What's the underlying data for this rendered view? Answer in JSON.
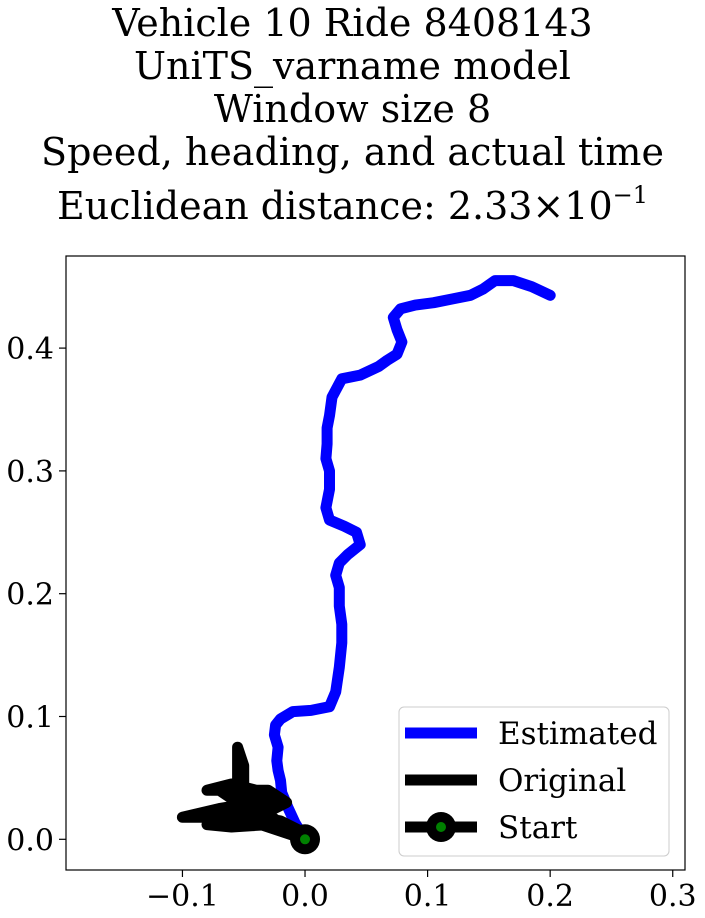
{
  "title": {
    "line1": "Vehicle 10 Ride 8408143",
    "line2": "UniTS_varname model",
    "line3": "Window size 8",
    "line4": "Speed, heading, and actual time",
    "line5_prefix": "Euclidean distance: 2.33×10",
    "line5_exp": "−1"
  },
  "chart_data": {
    "type": "line",
    "xlim": [
      -0.195,
      0.31
    ],
    "ylim": [
      -0.025,
      0.475
    ],
    "xticks": [
      {
        "value": -0.1,
        "label": "−0.1"
      },
      {
        "value": 0.0,
        "label": "0.0"
      },
      {
        "value": 0.1,
        "label": "0.1"
      },
      {
        "value": 0.2,
        "label": "0.2"
      },
      {
        "value": 0.3,
        "label": "0.3"
      }
    ],
    "yticks": [
      {
        "value": 0.0,
        "label": "0.0"
      },
      {
        "value": 0.1,
        "label": "0.1"
      },
      {
        "value": 0.2,
        "label": "0.2"
      },
      {
        "value": 0.3,
        "label": "0.3"
      },
      {
        "value": 0.4,
        "label": "0.4"
      }
    ],
    "grid": false,
    "legend_position": "lower-right",
    "series": [
      {
        "name": "Estimated",
        "color": "#0000ff",
        "points": [
          [
            0.0,
            0.0
          ],
          [
            -0.008,
            0.013
          ],
          [
            -0.014,
            0.026
          ],
          [
            -0.019,
            0.038
          ],
          [
            -0.02,
            0.048
          ],
          [
            -0.022,
            0.056
          ],
          [
            -0.023,
            0.064
          ],
          [
            -0.022,
            0.075
          ],
          [
            -0.025,
            0.085
          ],
          [
            -0.024,
            0.093
          ],
          [
            -0.02,
            0.098
          ],
          [
            -0.01,
            0.104
          ],
          [
            0.005,
            0.105
          ],
          [
            0.02,
            0.108
          ],
          [
            0.025,
            0.12
          ],
          [
            0.028,
            0.14
          ],
          [
            0.03,
            0.16
          ],
          [
            0.03,
            0.175
          ],
          [
            0.028,
            0.19
          ],
          [
            0.028,
            0.205
          ],
          [
            0.025,
            0.215
          ],
          [
            0.028,
            0.225
          ],
          [
            0.035,
            0.232
          ],
          [
            0.045,
            0.24
          ],
          [
            0.042,
            0.25
          ],
          [
            0.032,
            0.255
          ],
          [
            0.02,
            0.26
          ],
          [
            0.017,
            0.27
          ],
          [
            0.02,
            0.285
          ],
          [
            0.02,
            0.3
          ],
          [
            0.017,
            0.31
          ],
          [
            0.018,
            0.322
          ],
          [
            0.018,
            0.335
          ],
          [
            0.02,
            0.345
          ],
          [
            0.022,
            0.36
          ],
          [
            0.03,
            0.375
          ],
          [
            0.045,
            0.378
          ],
          [
            0.06,
            0.385
          ],
          [
            0.067,
            0.39
          ],
          [
            0.075,
            0.395
          ],
          [
            0.079,
            0.405
          ],
          [
            0.075,
            0.415
          ],
          [
            0.072,
            0.425
          ],
          [
            0.078,
            0.432
          ],
          [
            0.09,
            0.435
          ],
          [
            0.105,
            0.437
          ],
          [
            0.12,
            0.44
          ],
          [
            0.135,
            0.443
          ],
          [
            0.145,
            0.448
          ],
          [
            0.155,
            0.455
          ],
          [
            0.17,
            0.455
          ],
          [
            0.185,
            0.45
          ],
          [
            0.2,
            0.443
          ]
        ]
      },
      {
        "name": "Original",
        "color": "#000000",
        "points": [
          [
            0.0,
            0.0
          ],
          [
            -0.03,
            0.02
          ],
          [
            -0.055,
            0.03
          ],
          [
            -0.07,
            0.04
          ],
          [
            -0.08,
            0.04
          ],
          [
            -0.06,
            0.045
          ],
          [
            -0.04,
            0.04
          ],
          [
            -0.02,
            0.03
          ],
          [
            -0.05,
            0.02
          ],
          [
            -0.08,
            0.018
          ],
          [
            -0.1,
            0.018
          ],
          [
            -0.07,
            0.025
          ],
          [
            -0.04,
            0.03
          ],
          [
            -0.055,
            0.04
          ],
          [
            -0.055,
            0.055
          ],
          [
            -0.055,
            0.075
          ],
          [
            -0.05,
            0.06
          ],
          [
            -0.05,
            0.04
          ],
          [
            -0.03,
            0.02
          ],
          [
            -0.075,
            0.015
          ],
          [
            -0.05,
            0.02
          ],
          [
            -0.02,
            0.015
          ],
          [
            0.0,
            0.005
          ],
          [
            -0.03,
            0.012
          ],
          [
            -0.06,
            0.01
          ],
          [
            -0.08,
            0.012
          ],
          [
            -0.05,
            0.025
          ],
          [
            -0.02,
            0.03
          ],
          [
            -0.06,
            0.04
          ],
          [
            -0.03,
            0.04
          ],
          [
            -0.015,
            0.03
          ],
          [
            -0.045,
            0.015
          ],
          [
            0.0,
            0.0
          ]
        ]
      }
    ],
    "start_point": {
      "x": 0.0,
      "y": 0.0,
      "marker_color": "#008000"
    },
    "legend": [
      {
        "label": "Estimated",
        "color": "#0000ff"
      },
      {
        "label": "Original",
        "color": "#000000"
      },
      {
        "label": "Start",
        "color": "#000000",
        "marker_color": "#008000"
      }
    ]
  }
}
